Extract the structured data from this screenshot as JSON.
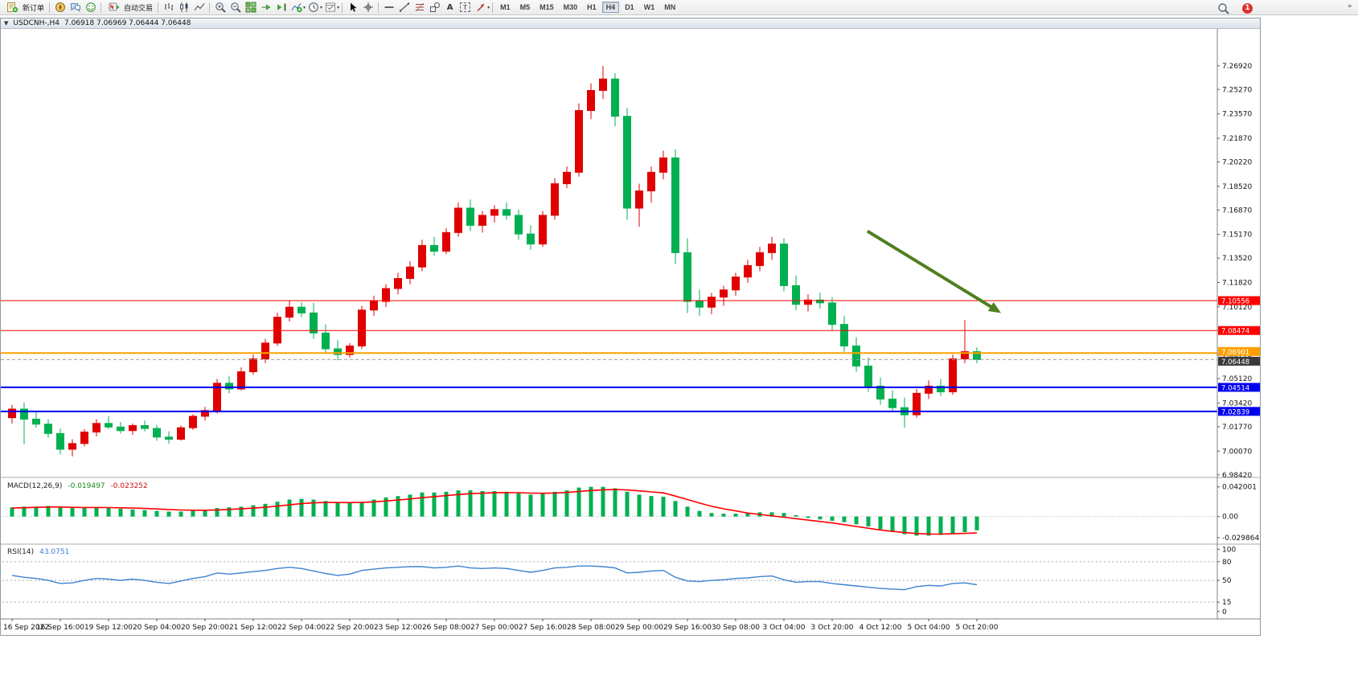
{
  "toolbar": {
    "new_order_label": "新订单",
    "auto_trading_label": "自动交易",
    "timeframes": [
      "M1",
      "M5",
      "M15",
      "M30",
      "H1",
      "H4",
      "D1",
      "W1",
      "MN"
    ],
    "active_timeframe": "H4",
    "notification_count": "1",
    "overflow_glyph": "»"
  },
  "window": {
    "title": "USDCNH-,H4",
    "ohlc": "7.06918 7.06969 7.06444 7.06448"
  },
  "chart_data": [
    {
      "type": "candlestick",
      "symbol": "USDCNH-",
      "timeframe": "H4",
      "up_color": "#e00000",
      "down_color": "#00b050",
      "price_axis_labels": [
        "7.26920",
        "7.25270",
        "7.23570",
        "7.21870",
        "7.20220",
        "7.18520",
        "7.16870",
        "7.15170",
        "7.13520",
        "7.11820",
        "7.10120",
        "7.08470",
        "7.06770",
        "7.05120",
        "7.03420",
        "7.01770",
        "7.00070",
        "6.98420"
      ],
      "time_labels": [
        "16 Sep 2022",
        "16 Sep 16:00",
        "19 Sep 12:00",
        "20 Sep 04:00",
        "20 Sep 20:00",
        "21 Sep 12:00",
        "22 Sep 04:00",
        "22 Sep 20:00",
        "23 Sep 12:00",
        "26 Sep 08:00",
        "27 Sep 00:00",
        "27 Sep 16:00",
        "28 Sep 08:00",
        "29 Sep 00:00",
        "29 Sep 16:00",
        "30 Sep 08:00",
        "3 Oct 04:00",
        "3 Oct 20:00",
        "4 Oct 12:00",
        "5 Oct 04:00",
        "5 Oct 20:00"
      ],
      "hlines": [
        {
          "price": 7.10556,
          "label": "7.10556",
          "color": "#ff0000",
          "width": 1
        },
        {
          "price": 7.08474,
          "label": "7.08474",
          "color": "#ff0000",
          "width": 1
        },
        {
          "price": 7.06901,
          "label": "7.06901",
          "color": "#ffa000",
          "width": 2
        },
        {
          "price": 7.04514,
          "label": "7.04514",
          "color": "#0000ee",
          "width": 2
        },
        {
          "price": 7.02839,
          "label": "7.02839",
          "color": "#0000ee",
          "width": 2
        }
      ],
      "current_price": {
        "price": 7.06448,
        "label": "7.06448",
        "tag_color": "#3a3a3a",
        "line_color": "#9a9a9a"
      },
      "arrow": {
        "x1_frac": 0.712,
        "price1": 7.154,
        "x2_frac": 0.822,
        "price2": 7.097,
        "color": "#4f7f1f"
      },
      "candles": [
        [
          7.024,
          7.033,
          7.02,
          7.03
        ],
        [
          7.03,
          7.0345,
          7.0055,
          7.023
        ],
        [
          7.023,
          7.028,
          7.017,
          7.0195
        ],
        [
          7.0195,
          7.023,
          7.01,
          7.013
        ],
        [
          7.013,
          7.0165,
          6.9985,
          7.002
        ],
        [
          7.002,
          7.009,
          6.997,
          7.006
        ],
        [
          7.006,
          7.016,
          7.004,
          7.014
        ],
        [
          7.014,
          7.023,
          7.011,
          7.02
        ],
        [
          7.02,
          7.025,
          7.016,
          7.0175
        ],
        [
          7.0175,
          7.021,
          7.013,
          7.015
        ],
        [
          7.015,
          7.02,
          7.012,
          7.0185
        ],
        [
          7.0185,
          7.022,
          7.0145,
          7.0165
        ],
        [
          7.0165,
          7.019,
          7.008,
          7.0105
        ],
        [
          7.0105,
          7.0145,
          7.006,
          7.009
        ],
        [
          7.009,
          7.0185,
          7.008,
          7.017
        ],
        [
          7.017,
          7.0265,
          7.0155,
          7.025
        ],
        [
          7.025,
          7.0315,
          7.022,
          7.029
        ],
        [
          7.029,
          7.051,
          7.027,
          7.048
        ],
        [
          7.048,
          7.053,
          7.041,
          7.044
        ],
        [
          7.044,
          7.059,
          7.043,
          7.056
        ],
        [
          7.056,
          7.068,
          7.054,
          7.065
        ],
        [
          7.065,
          7.079,
          7.062,
          7.076
        ],
        [
          7.076,
          7.097,
          7.074,
          7.094
        ],
        [
          7.094,
          7.1055,
          7.091,
          7.101
        ],
        [
          7.101,
          7.1045,
          7.094,
          7.097
        ],
        [
          7.097,
          7.104,
          7.079,
          7.083
        ],
        [
          7.083,
          7.089,
          7.069,
          7.072
        ],
        [
          7.072,
          7.078,
          7.064,
          7.068
        ],
        [
          7.068,
          7.076,
          7.066,
          7.074
        ],
        [
          7.074,
          7.102,
          7.072,
          7.099
        ],
        [
          7.099,
          7.109,
          7.095,
          7.105
        ],
        [
          7.105,
          7.117,
          7.101,
          7.114
        ],
        [
          7.114,
          7.125,
          7.11,
          7.121
        ],
        [
          7.121,
          7.133,
          7.117,
          7.129
        ],
        [
          7.129,
          7.148,
          7.126,
          7.144
        ],
        [
          7.144,
          7.15,
          7.137,
          7.14
        ],
        [
          7.14,
          7.156,
          7.138,
          7.153
        ],
        [
          7.153,
          7.174,
          7.15,
          7.17
        ],
        [
          7.17,
          7.176,
          7.154,
          7.158
        ],
        [
          7.158,
          7.168,
          7.153,
          7.165
        ],
        [
          7.165,
          7.172,
          7.16,
          7.169
        ],
        [
          7.169,
          7.174,
          7.162,
          7.165
        ],
        [
          7.165,
          7.169,
          7.148,
          7.152
        ],
        [
          7.152,
          7.158,
          7.141,
          7.145
        ],
        [
          7.145,
          7.168,
          7.143,
          7.165
        ],
        [
          7.165,
          7.191,
          7.162,
          7.187
        ],
        [
          7.187,
          7.199,
          7.184,
          7.195
        ],
        [
          7.195,
          7.243,
          7.192,
          7.238
        ],
        [
          7.238,
          7.257,
          7.232,
          7.252
        ],
        [
          7.252,
          7.269,
          7.246,
          7.26
        ],
        [
          7.26,
          7.264,
          7.227,
          7.234
        ],
        [
          7.234,
          7.24,
          7.162,
          7.17
        ],
        [
          7.17,
          7.187,
          7.157,
          7.182
        ],
        [
          7.182,
          7.199,
          7.174,
          7.195
        ],
        [
          7.195,
          7.21,
          7.19,
          7.205
        ],
        [
          7.205,
          7.211,
          7.131,
          7.139
        ],
        [
          7.139,
          7.149,
          7.097,
          7.105
        ],
        [
          7.105,
          7.113,
          7.095,
          7.101
        ],
        [
          7.101,
          7.111,
          7.096,
          7.108
        ],
        [
          7.108,
          7.116,
          7.102,
          7.113
        ],
        [
          7.113,
          7.125,
          7.109,
          7.122
        ],
        [
          7.122,
          7.134,
          7.118,
          7.13
        ],
        [
          7.13,
          7.143,
          7.126,
          7.139
        ],
        [
          7.139,
          7.15,
          7.134,
          7.145
        ],
        [
          7.145,
          7.149,
          7.112,
          7.116
        ],
        [
          7.116,
          7.123,
          7.099,
          7.103
        ],
        [
          7.103,
          7.11,
          7.098,
          7.106
        ],
        [
          7.106,
          7.111,
          7.1,
          7.104
        ],
        [
          7.104,
          7.108,
          7.085,
          7.089
        ],
        [
          7.089,
          7.095,
          7.07,
          7.074
        ],
        [
          7.074,
          7.08,
          7.056,
          7.06
        ],
        [
          7.06,
          7.066,
          7.042,
          7.046
        ],
        [
          7.046,
          7.052,
          7.033,
          7.037
        ],
        [
          7.037,
          7.043,
          7.028,
          7.031
        ],
        [
          7.031,
          7.038,
          7.017,
          7.026
        ],
        [
          7.026,
          7.044,
          7.024,
          7.041
        ],
        [
          7.041,
          7.05,
          7.037,
          7.046
        ],
        [
          7.046,
          7.051,
          7.039,
          7.042
        ],
        [
          7.042,
          7.068,
          7.04,
          7.065
        ],
        [
          7.065,
          7.092,
          7.062,
          7.07
        ],
        [
          7.07,
          7.073,
          7.062,
          7.0645
        ]
      ]
    },
    {
      "type": "bar",
      "name": "MACD",
      "title": "MACD(12,26,9)",
      "value_main": "-0.019497",
      "value_signal": "-0.023252",
      "histogram_color": "#00b050",
      "signal_color": "#ff0000",
      "y_labels": [
        {
          "text": "0.042001",
          "value": 0.042001
        },
        {
          "text": "0.00",
          "value": 0
        },
        {
          "text": "-0.029864",
          "value": -0.029864
        }
      ],
      "histogram": [
        0.013,
        0.014,
        0.014,
        0.015,
        0.013,
        0.012,
        0.012,
        0.013,
        0.012,
        0.011,
        0.01,
        0.009,
        0.008,
        0.007,
        0.007,
        0.008,
        0.009,
        0.012,
        0.013,
        0.014,
        0.016,
        0.018,
        0.021,
        0.024,
        0.025,
        0.024,
        0.022,
        0.02,
        0.019,
        0.021,
        0.024,
        0.027,
        0.029,
        0.031,
        0.034,
        0.034,
        0.035,
        0.037,
        0.037,
        0.036,
        0.036,
        0.035,
        0.033,
        0.031,
        0.032,
        0.035,
        0.037,
        0.041,
        0.042,
        0.042,
        0.04,
        0.035,
        0.031,
        0.029,
        0.028,
        0.022,
        0.014,
        0.008,
        0.005,
        0.004,
        0.004,
        0.005,
        0.006,
        0.006,
        0.005,
        0.002,
        -0.002,
        -0.004,
        -0.006,
        -0.008,
        -0.011,
        -0.014,
        -0.018,
        -0.022,
        -0.025,
        -0.027,
        -0.027,
        -0.026,
        -0.024,
        -0.022,
        -0.0195
      ],
      "signal": [
        0.012,
        0.0125,
        0.013,
        0.0135,
        0.0135,
        0.013,
        0.0128,
        0.0128,
        0.0127,
        0.0124,
        0.012,
        0.0114,
        0.0107,
        0.01,
        0.0093,
        0.0089,
        0.0089,
        0.0094,
        0.0101,
        0.0109,
        0.0119,
        0.0131,
        0.0147,
        0.0166,
        0.0183,
        0.0194,
        0.0199,
        0.0199,
        0.0197,
        0.02,
        0.0208,
        0.022,
        0.0234,
        0.0249,
        0.0267,
        0.0282,
        0.0296,
        0.0311,
        0.0323,
        0.033,
        0.0336,
        0.0339,
        0.0337,
        0.0331,
        0.0329,
        0.0333,
        0.0341,
        0.0355,
        0.0368,
        0.0378,
        0.0383,
        0.0376,
        0.0363,
        0.0348,
        0.0335,
        0.029,
        0.024,
        0.019,
        0.0145,
        0.011,
        0.008,
        0.005,
        0.003,
        0.001,
        -0.001,
        -0.003,
        -0.005,
        -0.007,
        -0.009,
        -0.0115,
        -0.014,
        -0.0165,
        -0.019,
        -0.021,
        -0.0227,
        -0.024,
        -0.0247,
        -0.0248,
        -0.0244,
        -0.0238,
        -0.0233
      ]
    },
    {
      "type": "line",
      "name": "RSI",
      "title": "RSI(14)",
      "value_text": "43.0751",
      "line_color": "#3e82cf",
      "levels": [
        80,
        50,
        15
      ],
      "y_labels": [
        {
          "text": "100",
          "value": 100
        },
        {
          "text": "80",
          "value": 80
        },
        {
          "text": "50",
          "value": 50
        },
        {
          "text": "15",
          "value": 15
        },
        {
          "text": "0",
          "value": 0
        }
      ],
      "values": [
        58,
        55,
        53,
        50,
        45,
        46,
        50,
        53,
        52,
        50,
        52,
        50,
        47,
        45,
        49,
        53,
        56,
        62,
        60,
        62,
        64,
        66,
        69,
        71,
        69,
        65,
        61,
        58,
        60,
        66,
        68,
        70,
        71,
        72,
        72,
        70,
        71,
        73,
        70,
        69,
        70,
        69,
        66,
        63,
        66,
        70,
        71,
        73,
        73,
        72,
        70,
        62,
        63,
        65,
        66,
        55,
        49,
        48,
        50,
        51,
        53,
        54,
        56,
        57,
        51,
        47,
        48,
        48,
        45,
        43,
        41,
        39,
        37,
        36,
        35,
        40,
        42,
        41,
        45,
        46,
        43
      ]
    }
  ]
}
